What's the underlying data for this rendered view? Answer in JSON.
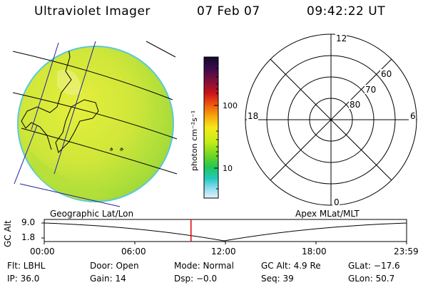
{
  "header": {
    "title": "Ultraviolet Imager",
    "date": "07 Feb 07",
    "time": "09:42:22 UT"
  },
  "colorbar": {
    "unit_label": "photon cm⁻²s⁻¹",
    "ticks": [
      "100",
      "10"
    ],
    "colors": [
      "#1a0a2e",
      "#3b0a4a",
      "#7a0a3a",
      "#c0101a",
      "#e84a10",
      "#f5a20a",
      "#f8e01a",
      "#c8ec1a",
      "#78d81a",
      "#2ac84a",
      "#20c8c0",
      "#7ad8ec",
      "#d4ecf4"
    ]
  },
  "polar_plot": {
    "mlt_labels": {
      "top": "12",
      "left": "18",
      "right": "6",
      "bottom": "0"
    },
    "lat_labels": [
      "60",
      "70",
      "80"
    ]
  },
  "map_markers": [
    "6",
    "6"
  ],
  "timeline": {
    "left_label": "Geographic Lat/Lon",
    "right_label": "Apex MLat/MLT",
    "y_axis_label": "GC Alt",
    "y_ticks": [
      "9.0",
      "1.8"
    ],
    "x_ticks": [
      "00:00",
      "06:00",
      "12:00",
      "18:00",
      "23:59"
    ],
    "current_fraction": 0.405
  },
  "footer": {
    "flt": "Flt: LBHL",
    "door": "Door: Open",
    "mode": "Mode: Normal",
    "gc_alt": "GC Alt: 4.9 Re",
    "glat": "GLat: −17.6",
    "ip": "IP: 36.0",
    "gain": "Gain: 14",
    "dsp": "Dsp:   −0.0",
    "seq": "Seq: 39",
    "glon": "GLon:  50.7"
  }
}
